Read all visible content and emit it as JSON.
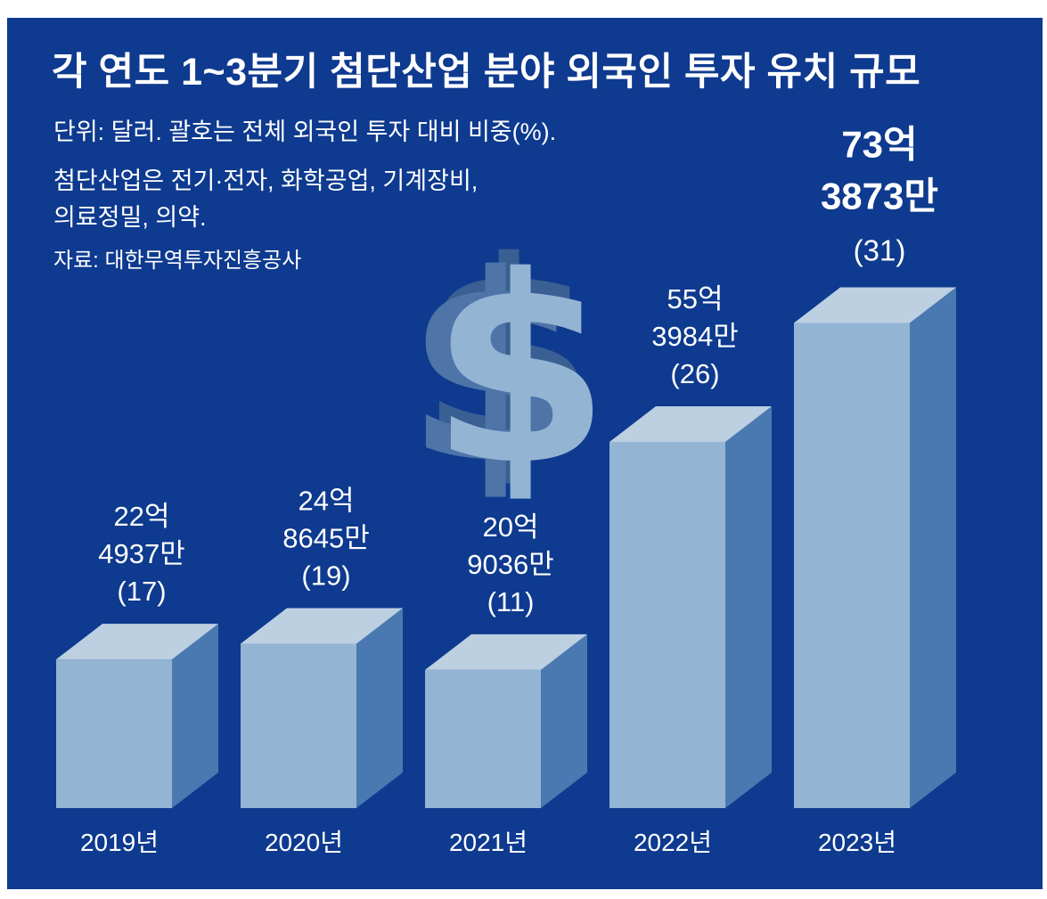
{
  "title": "각 연도 1~3분기 첨단산업 분야 외국인 투자 유치 규모",
  "notes": {
    "unit": "단위: 달러. 괄호는 전체 외국인 투자 대비 비중(%).",
    "scope_line1": "첨단산업은 전기·전자, 화학공업, 기계장비,",
    "scope_line2": "의료정밀, 의약.",
    "source": "자료: 대한무역투자진흥공사"
  },
  "icons": [
    "dollar-sign-icon"
  ],
  "colors": {
    "background": "#0e3a8f",
    "bar_front": "#93b4d3",
    "bar_top": "#bcd0e2",
    "bar_side": "#4a78b0",
    "text": "#ffffff"
  },
  "chart_data": {
    "type": "bar",
    "style": "3d",
    "categories": [
      "2019년",
      "2020년",
      "2021년",
      "2022년",
      "2023년"
    ],
    "values": [
      22.4937,
      24.8645,
      20.9036,
      55.3984,
      73.3873
    ],
    "shares": [
      17,
      19,
      11,
      26,
      31
    ],
    "value_labels": [
      [
        "22억",
        "4937만",
        "(17)"
      ],
      [
        "24억",
        "8645만",
        "(19)"
      ],
      [
        "20억",
        "9036만",
        "(11)"
      ],
      [
        "55억",
        "3984만",
        "(26)"
      ],
      [
        "73억",
        "3873만",
        "(31)"
      ]
    ],
    "highlight_index": 4,
    "grid": false,
    "legend": "none"
  }
}
